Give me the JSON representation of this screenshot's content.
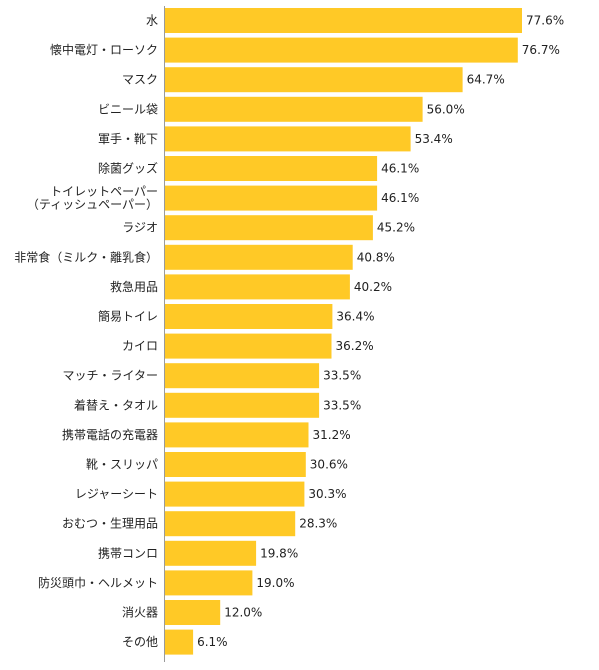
{
  "chart_data": {
    "type": "bar",
    "orientation": "horizontal",
    "title": "",
    "xlabel": "",
    "ylabel": "",
    "xlim": [
      0,
      80
    ],
    "grid": false,
    "legend": "none",
    "bar_color": "#FFC926",
    "categories": [
      [
        "水"
      ],
      [
        "懐中電灯・ローソク"
      ],
      [
        "マスク"
      ],
      [
        "ビニール袋"
      ],
      [
        "軍手・靴下"
      ],
      [
        "除菌グッズ"
      ],
      [
        "トイレットペーパー",
        "（ティッシュペーパー）"
      ],
      [
        "ラジオ"
      ],
      [
        "非常食（ミルク・離乳食）"
      ],
      [
        "救急用品"
      ],
      [
        "簡易トイレ"
      ],
      [
        "カイロ"
      ],
      [
        "マッチ・ライター"
      ],
      [
        "着替え・タオル"
      ],
      [
        "携帯電話の充電器"
      ],
      [
        "靴・スリッパ"
      ],
      [
        "レジャーシート"
      ],
      [
        "おむつ・生理用品"
      ],
      [
        "携帯コンロ"
      ],
      [
        "防災頭巾・ヘルメット"
      ],
      [
        "消火器"
      ],
      [
        "その他"
      ]
    ],
    "values": [
      77.6,
      76.7,
      64.7,
      56.0,
      53.4,
      46.1,
      46.1,
      45.2,
      40.8,
      40.2,
      36.4,
      36.2,
      33.5,
      33.5,
      31.2,
      30.6,
      30.3,
      28.3,
      19.8,
      19.0,
      12.0,
      6.1
    ],
    "value_labels": [
      "77.6%",
      "76.7%",
      "64.7%",
      "56.0%",
      "53.4%",
      "46.1%",
      "46.1%",
      "45.2%",
      "40.8%",
      "40.2%",
      "36.4%",
      "36.2%",
      "33.5%",
      "33.5%",
      "31.2%",
      "30.6%",
      "30.3%",
      "28.3%",
      "19.8%",
      "19.0%",
      "12.0%",
      "6.1%"
    ]
  }
}
